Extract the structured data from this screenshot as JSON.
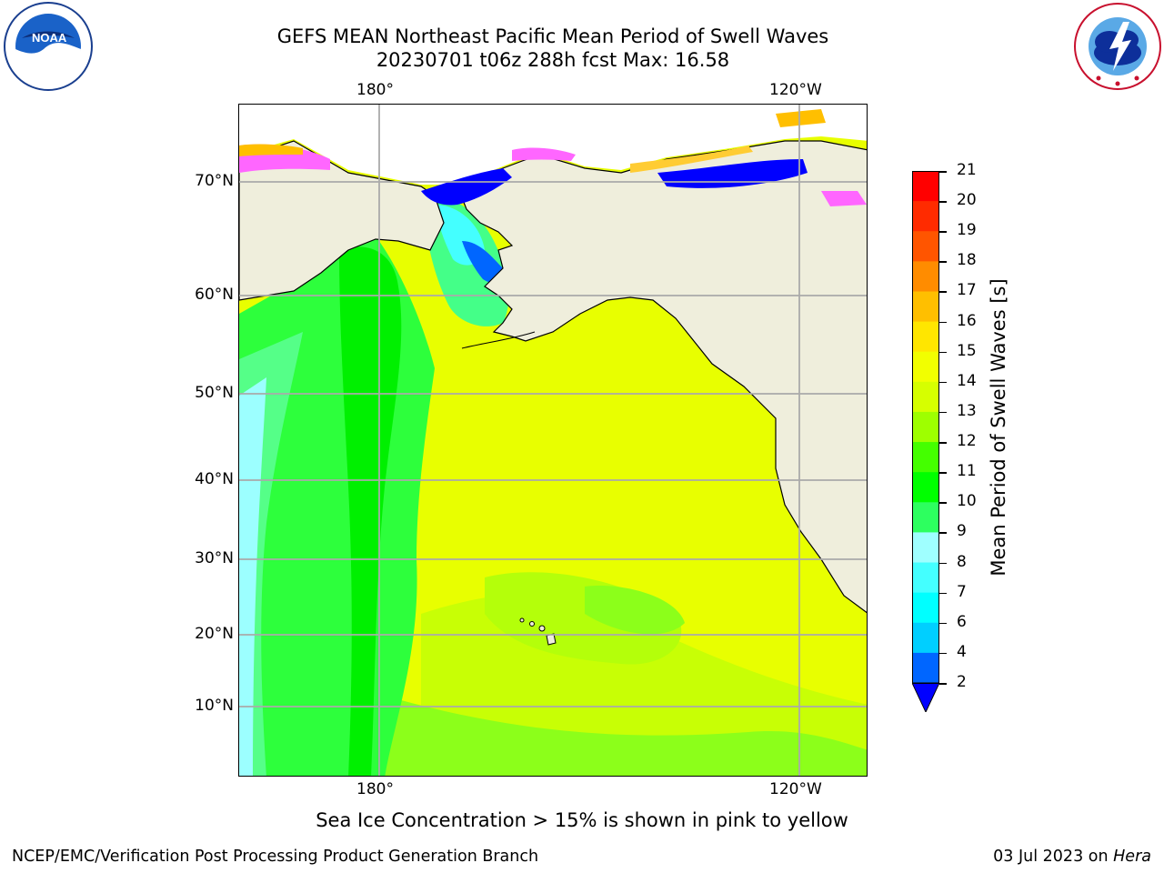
{
  "header": {
    "title_line1": "GEFS MEAN Northeast Pacific Mean Period of Swell Waves",
    "title_line2": "20230701 t06z 288h fcst   Max: 16.58"
  },
  "axes": {
    "lon_top": [
      "180°",
      "120°W"
    ],
    "lon_bottom": [
      "180°",
      "120°W"
    ],
    "lat": [
      "70°N",
      "60°N",
      "50°N",
      "40°N",
      "30°N",
      "20°N",
      "10°N"
    ]
  },
  "colorbar": {
    "label": "Mean Period of Swell Waves [s]",
    "ticks": [
      "2",
      "4",
      "6",
      "7",
      "8",
      "9",
      "10",
      "11",
      "12",
      "13",
      "14",
      "15",
      "16",
      "17",
      "18",
      "19",
      "20",
      "21"
    ],
    "colors": [
      "#0000ff",
      "#0066ff",
      "#00cfff",
      "#00ffff",
      "#44ffff",
      "#9fffff",
      "#2dff5f",
      "#00ff00",
      "#44ff00",
      "#9eff00",
      "#d6ff00",
      "#f2ff00",
      "#ffe600",
      "#ffbf00",
      "#ff8c00",
      "#ff5500",
      "#ff2b00",
      "#ff0000"
    ]
  },
  "note": "Sea Ice Concentration > 15% is shown in pink to yellow",
  "footer": {
    "left": "NCEP/EMC/Verification Post Processing Product Generation Branch",
    "date": "03 Jul 2023 on",
    "host": "Hera"
  },
  "logos": {
    "left": "NOAA",
    "right": "NATIONAL WEATHER SERVICE"
  },
  "map_colors": {
    "land": "#efeedc",
    "ocean_yellow": "#e8ff00",
    "ocean_yellowgreen": "#b4ff0a",
    "ocean_green": "#2dff3c",
    "ocean_brightgreen": "#00f000",
    "ocean_mint": "#55ff88",
    "ocean_cyan": "#9cffff",
    "ice_blue": "#0000ff",
    "ice_pink": "#ff66ff"
  }
}
